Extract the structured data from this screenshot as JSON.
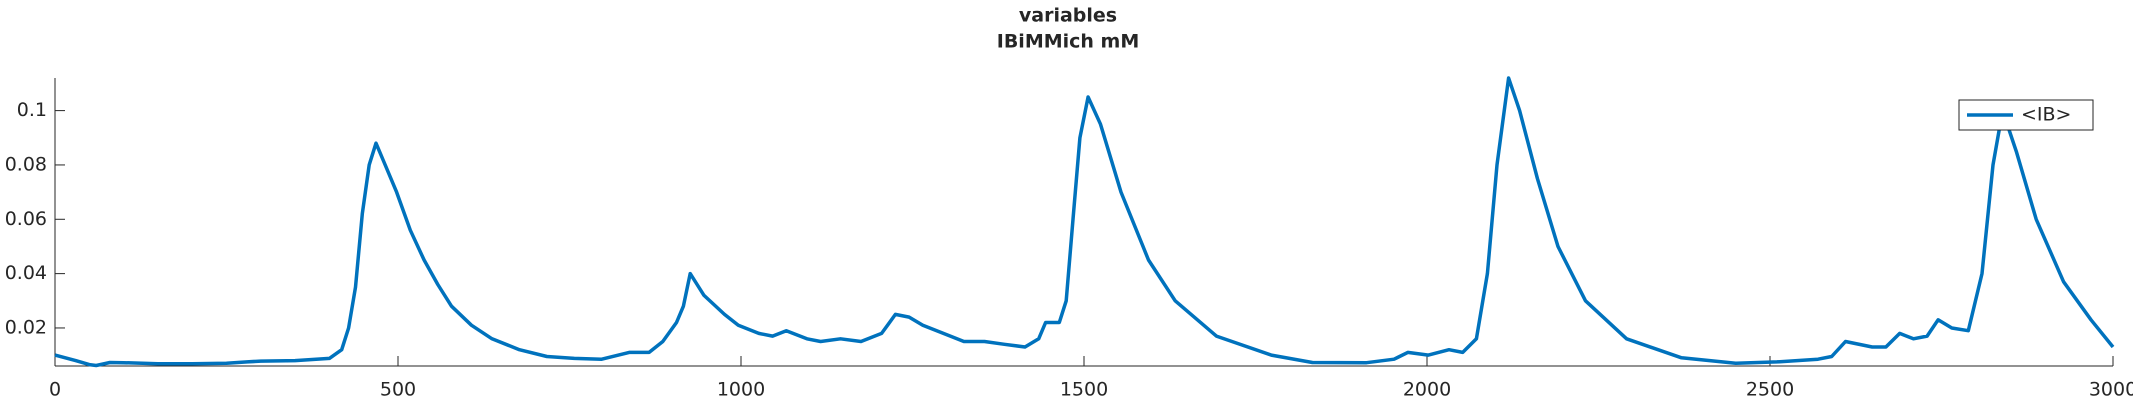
{
  "chart_data": {
    "type": "line",
    "title": "variables",
    "subtitle": "IBiMMich mM",
    "x": [
      0,
      30,
      50,
      60,
      80,
      100,
      150,
      200,
      250,
      280,
      300,
      350,
      400,
      418,
      428,
      438,
      448,
      458,
      468,
      478,
      498,
      518,
      538,
      558,
      578,
      607,
      637,
      677,
      717,
      757,
      797,
      837,
      866,
      886,
      906,
      916,
      926,
      936,
      946,
      976,
      996,
      1026,
      1046,
      1066,
      1096,
      1116,
      1145,
      1175,
      1205,
      1225,
      1245,
      1265,
      1295,
      1325,
      1355,
      1384,
      1414,
      1434,
      1444,
      1464,
      1474,
      1484,
      1494,
      1506,
      1524,
      1554,
      1594,
      1633,
      1693,
      1773,
      1833,
      1912,
      1952,
      1972,
      2002,
      2032,
      2052,
      2072,
      2088,
      2102,
      2119,
      2135,
      2161,
      2191,
      2231,
      2291,
      2371,
      2450,
      2510,
      2570,
      2590,
      2610,
      2649,
      2669,
      2689,
      2709,
      2729,
      2745,
      2765,
      2789,
      2809,
      2825,
      2839,
      2859,
      2888,
      2928,
      2968,
      3000
    ],
    "series": [
      {
        "name": "<IB>",
        "color": "#0072bd",
        "values": [
          0.01,
          0.008,
          0.0065,
          0.0062,
          0.0073,
          0.0072,
          0.0068,
          0.0068,
          0.007,
          0.0075,
          0.0078,
          0.008,
          0.0088,
          0.012,
          0.02,
          0.035,
          0.062,
          0.08,
          0.088,
          0.082,
          0.07,
          0.056,
          0.045,
          0.036,
          0.028,
          0.021,
          0.016,
          0.012,
          0.0095,
          0.0088,
          0.0085,
          0.011,
          0.011,
          0.015,
          0.022,
          0.028,
          0.04,
          0.036,
          0.032,
          0.025,
          0.021,
          0.018,
          0.017,
          0.019,
          0.016,
          0.015,
          0.016,
          0.015,
          0.018,
          0.025,
          0.024,
          0.021,
          0.018,
          0.015,
          0.015,
          0.014,
          0.013,
          0.016,
          0.022,
          0.022,
          0.03,
          0.06,
          0.09,
          0.105,
          0.095,
          0.07,
          0.045,
          0.03,
          0.017,
          0.01,
          0.0073,
          0.0072,
          0.0085,
          0.011,
          0.01,
          0.012,
          0.011,
          0.016,
          0.04,
          0.08,
          0.112,
          0.1,
          0.075,
          0.05,
          0.03,
          0.016,
          0.009,
          0.007,
          0.0075,
          0.0085,
          0.0095,
          0.015,
          0.013,
          0.013,
          0.018,
          0.016,
          0.017,
          0.023,
          0.02,
          0.019,
          0.04,
          0.08,
          0.1,
          0.085,
          0.06,
          0.037,
          0.023,
          0.013
        ]
      }
    ],
    "xlim": [
      0,
      3000
    ],
    "xticks": [
      0,
      500,
      1000,
      1500,
      2000,
      2500,
      3000
    ],
    "ylim": [
      0.006,
      0.112
    ],
    "yticks": [
      0.02,
      0.04,
      0.06,
      0.08,
      0.1
    ],
    "legend": "upper right"
  }
}
